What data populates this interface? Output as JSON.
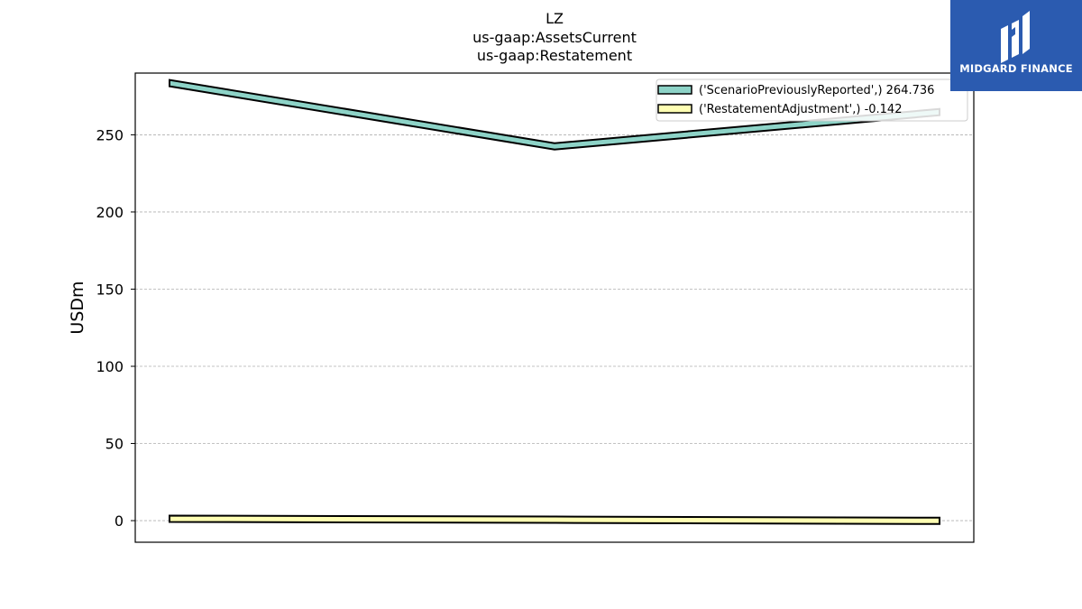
{
  "chart_data": {
    "type": "line",
    "title_lines": [
      "LZ",
      "us-gaap:AssetsCurrent",
      "us-gaap:Restatement"
    ],
    "xlabel": "",
    "ylabel": "USDm",
    "x": [
      0,
      1,
      2
    ],
    "ylim": [
      -14,
      290
    ],
    "yticks": [
      0,
      50,
      100,
      150,
      200,
      250
    ],
    "grid": "horizontal dashed",
    "legend_position": "top-right",
    "series": [
      {
        "name": "('ScenarioPreviouslyReported',) 264.736",
        "values": [
          283.5,
          242.5,
          264.736
        ],
        "color": "#8dd3c7"
      },
      {
        "name": "('RestatementAdjustment',) -0.142",
        "values": [
          1.2,
          0.6,
          -0.142
        ],
        "color": "#ffffb3"
      }
    ]
  },
  "logo": {
    "text": "MIDGARD FINANCE",
    "color": "#2b5bb0"
  }
}
